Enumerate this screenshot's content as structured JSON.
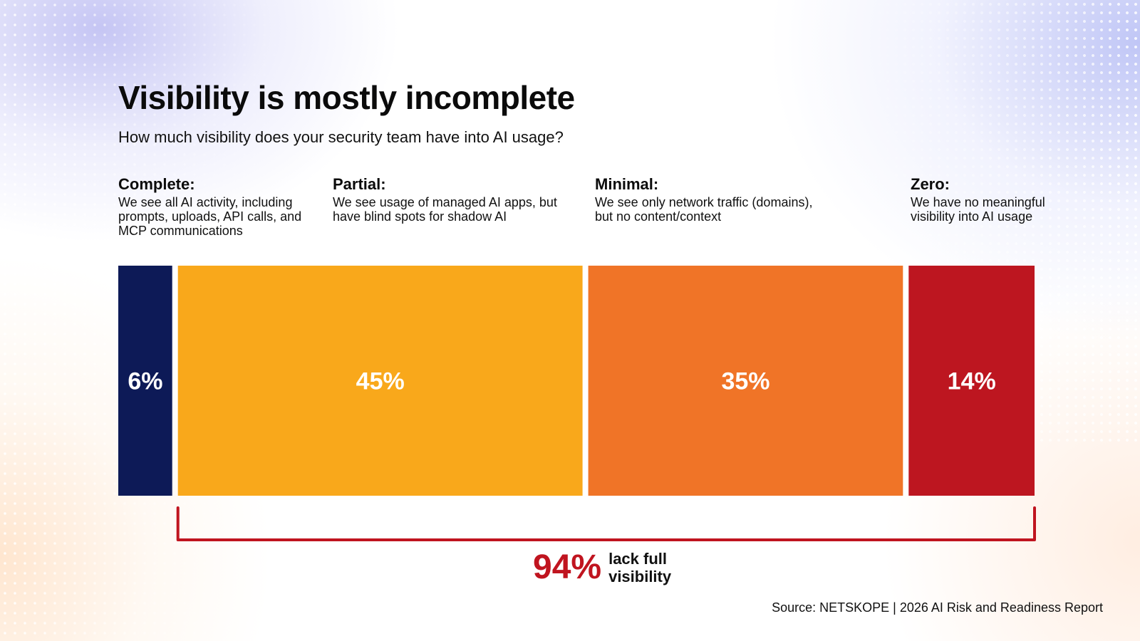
{
  "title": "Visibility is mostly incomplete",
  "subtitle": "How much visibility does your security team have into AI usage?",
  "categories": [
    {
      "name": "Complete:",
      "description": "We see all AI activity, including prompts, uploads, API calls, and MCP communications"
    },
    {
      "name": "Partial:",
      "description": "We see usage of managed AI apps, but have blind spots for shadow AI"
    },
    {
      "name": "Minimal:",
      "description": "We see only network traffic (domains), but no content/context"
    },
    {
      "name": "Zero:",
      "description": "We have no meaningful visibility into AI usage"
    }
  ],
  "chart_data": {
    "type": "bar",
    "orientation": "stacked-horizontal",
    "title": "Visibility is mostly incomplete",
    "subtitle": "How much visibility does your security team have into AI usage?",
    "categories": [
      "Complete",
      "Partial",
      "Minimal",
      "Zero"
    ],
    "values": [
      6,
      45,
      35,
      14
    ],
    "labels": [
      "6%",
      "45%",
      "35%",
      "14%"
    ],
    "colors": [
      "#0d1a57",
      "#f9a81b",
      "#f07427",
      "#bd1620"
    ],
    "xlabel": "",
    "ylabel": "",
    "annotation": {
      "bracket_over": [
        "Partial",
        "Minimal",
        "Zero"
      ],
      "value": "94%",
      "text": "lack full visibility",
      "color": "#c0141f"
    }
  },
  "summary": {
    "value": "94%",
    "text": "lack full visibility"
  },
  "source": "Source: NETSKOPE | 2026 AI Risk and Readiness Report"
}
